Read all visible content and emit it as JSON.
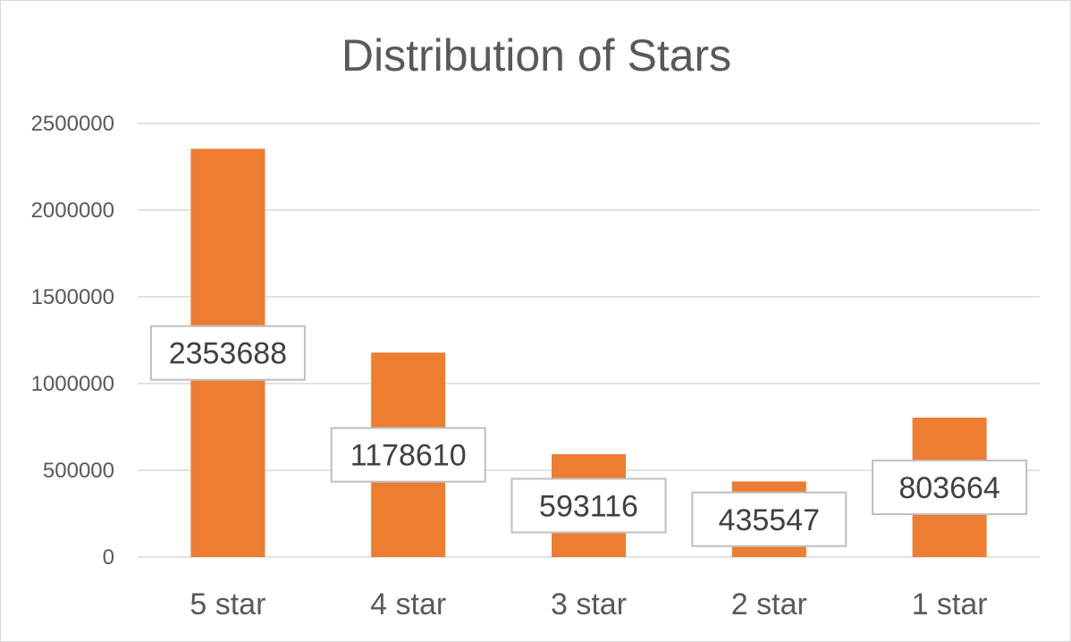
{
  "chart_data": {
    "type": "bar",
    "title": "Distribution of Stars",
    "categories": [
      "5 star",
      "4 star",
      "3 star",
      "2 star",
      "1 star"
    ],
    "values": [
      2353688,
      1178610,
      593116,
      435547,
      803664
    ],
    "data_labels": [
      "2353688",
      "1178610",
      "593116",
      "435547",
      "803664"
    ],
    "ylim": [
      0,
      2500000
    ],
    "yticks": [
      0,
      500000,
      1000000,
      1500000,
      2000000,
      2500000
    ],
    "ytick_labels": [
      "0",
      "500000",
      "1000000",
      "1500000",
      "2000000",
      "2500000"
    ],
    "xlabel": "",
    "ylabel": "",
    "grid": true,
    "legend": "none",
    "bar_color": "#ED7D31"
  }
}
